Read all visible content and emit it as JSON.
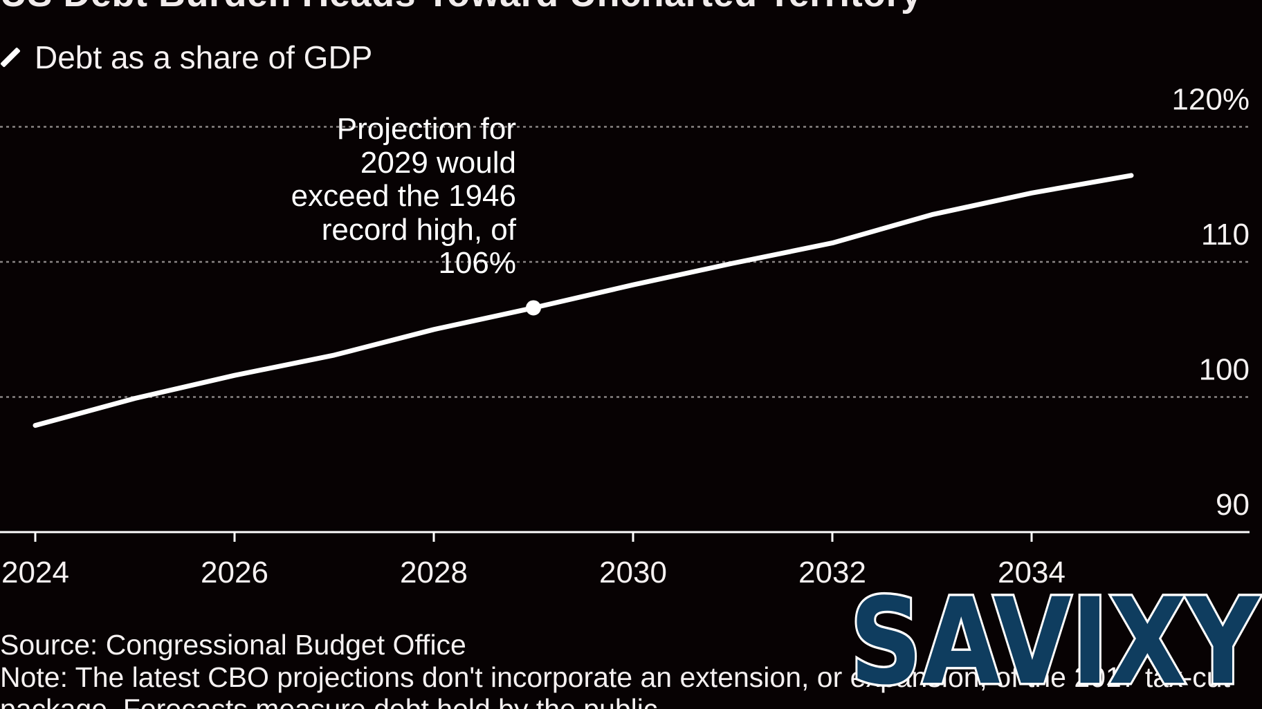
{
  "chart_data": {
    "type": "line",
    "title": "US Debt Burden Heads Toward Uncharted Territory",
    "legend": [
      {
        "label": "Debt as a share of GDP",
        "color": "#ffffff"
      }
    ],
    "x": [
      2024,
      2025,
      2026,
      2027,
      2028,
      2029,
      2030,
      2031,
      2032,
      2033,
      2034,
      2035
    ],
    "series": [
      {
        "name": "Debt as a share of GDP",
        "values": [
          97.9,
          99.9,
          101.6,
          103.1,
          105.0,
          106.6,
          108.3,
          109.9,
          111.4,
          113.5,
          115.1,
          116.4
        ]
      }
    ],
    "highlight": {
      "x": 2029,
      "y": 106.6
    },
    "annotation": "Projection for 2029 would exceed the 1946 record high, of 106%",
    "xlim": [
      2024,
      2035
    ],
    "ylim": [
      90,
      120
    ],
    "x_ticks": [
      "2024",
      "2026",
      "2028",
      "2030",
      "2032",
      "2034"
    ],
    "y_ticks": [
      "120%",
      "110",
      "100",
      "90"
    ],
    "gridlines": true,
    "legend_position": "top-left",
    "source": "Source: Congressional Budget Office",
    "note": "Note: The latest CBO projections don't incorporate an extension, or expansion, of the 2017 tax-cut package. Forecasts measure debt held by the public."
  },
  "watermark": {
    "text": "SAVIXY",
    "fill": "#0f3d5f",
    "stroke": "#ffffff"
  },
  "colors": {
    "background": "#070203",
    "line": "#ffffff",
    "grid": "#8a8585"
  }
}
